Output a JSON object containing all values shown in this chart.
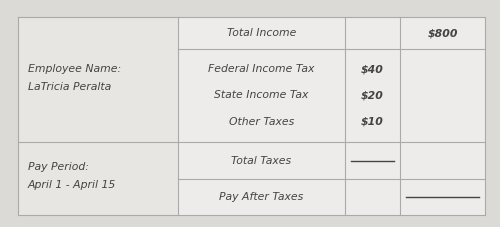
{
  "bg_color": "#dcdad6",
  "cell_bg_left": "#e8e6e2",
  "cell_bg_right": "#edecea",
  "border_color": "#aaaaaa",
  "text_color": "#444444",
  "employee_name_label": "Employee Name:",
  "employee_name": "LaTricia Peralta",
  "pay_period_label": "Pay Period:",
  "pay_period": "April 1 - April 15",
  "total_income_label": "Total Income",
  "total_income_value": "$800",
  "federal_tax_label": "Federal Income Tax",
  "federal_tax_value": "$40",
  "state_tax_label": "State Income Tax",
  "state_tax_value": "$20",
  "other_taxes_label": "Other Taxes",
  "other_taxes_value": "$10",
  "total_taxes_label": "Total Taxes",
  "pay_after_taxes_label": "Pay After Taxes",
  "font_size": 7.8
}
